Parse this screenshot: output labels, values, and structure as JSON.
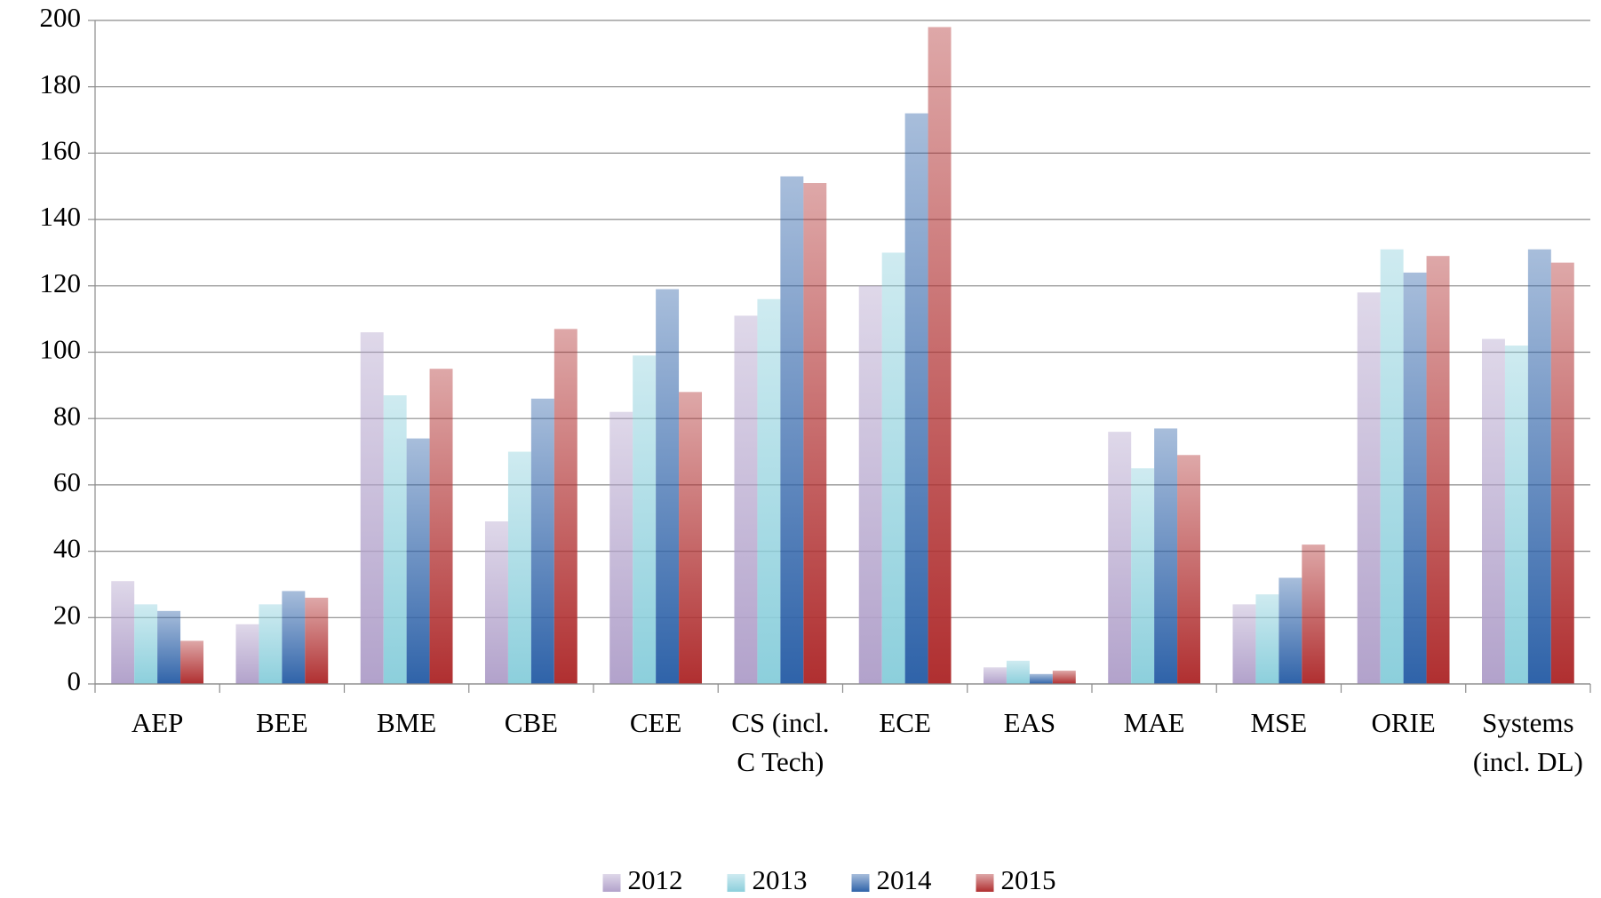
{
  "chart_data": {
    "type": "bar",
    "categories": [
      "AEP",
      "BEE",
      "BME",
      "CBE",
      "CEE",
      "CS (incl. C Tech)",
      "ECE",
      "EAS",
      "MAE",
      "MSE",
      "ORIE",
      "Systems (incl. DL)"
    ],
    "series": [
      {
        "name": "2012",
        "color": "#b2a2cb",
        "values": [
          31,
          18,
          106,
          49,
          82,
          111,
          120,
          5,
          76,
          24,
          118,
          104
        ]
      },
      {
        "name": "2013",
        "color": "#8ccfdc",
        "values": [
          24,
          24,
          87,
          70,
          99,
          116,
          130,
          7,
          65,
          27,
          131,
          102
        ]
      },
      {
        "name": "2014",
        "color": "#2f63a9",
        "values": [
          22,
          28,
          74,
          86,
          119,
          153,
          172,
          3,
          77,
          32,
          124,
          131
        ]
      },
      {
        "name": "2015",
        "color": "#b02f30",
        "values": [
          13,
          26,
          95,
          107,
          88,
          151,
          198,
          4,
          69,
          42,
          129,
          127
        ]
      }
    ],
    "ylim": [
      0,
      200
    ],
    "yticks": [
      0,
      20,
      40,
      60,
      80,
      100,
      120,
      140,
      160,
      180,
      200
    ],
    "grid": true,
    "legend": "bottom"
  }
}
